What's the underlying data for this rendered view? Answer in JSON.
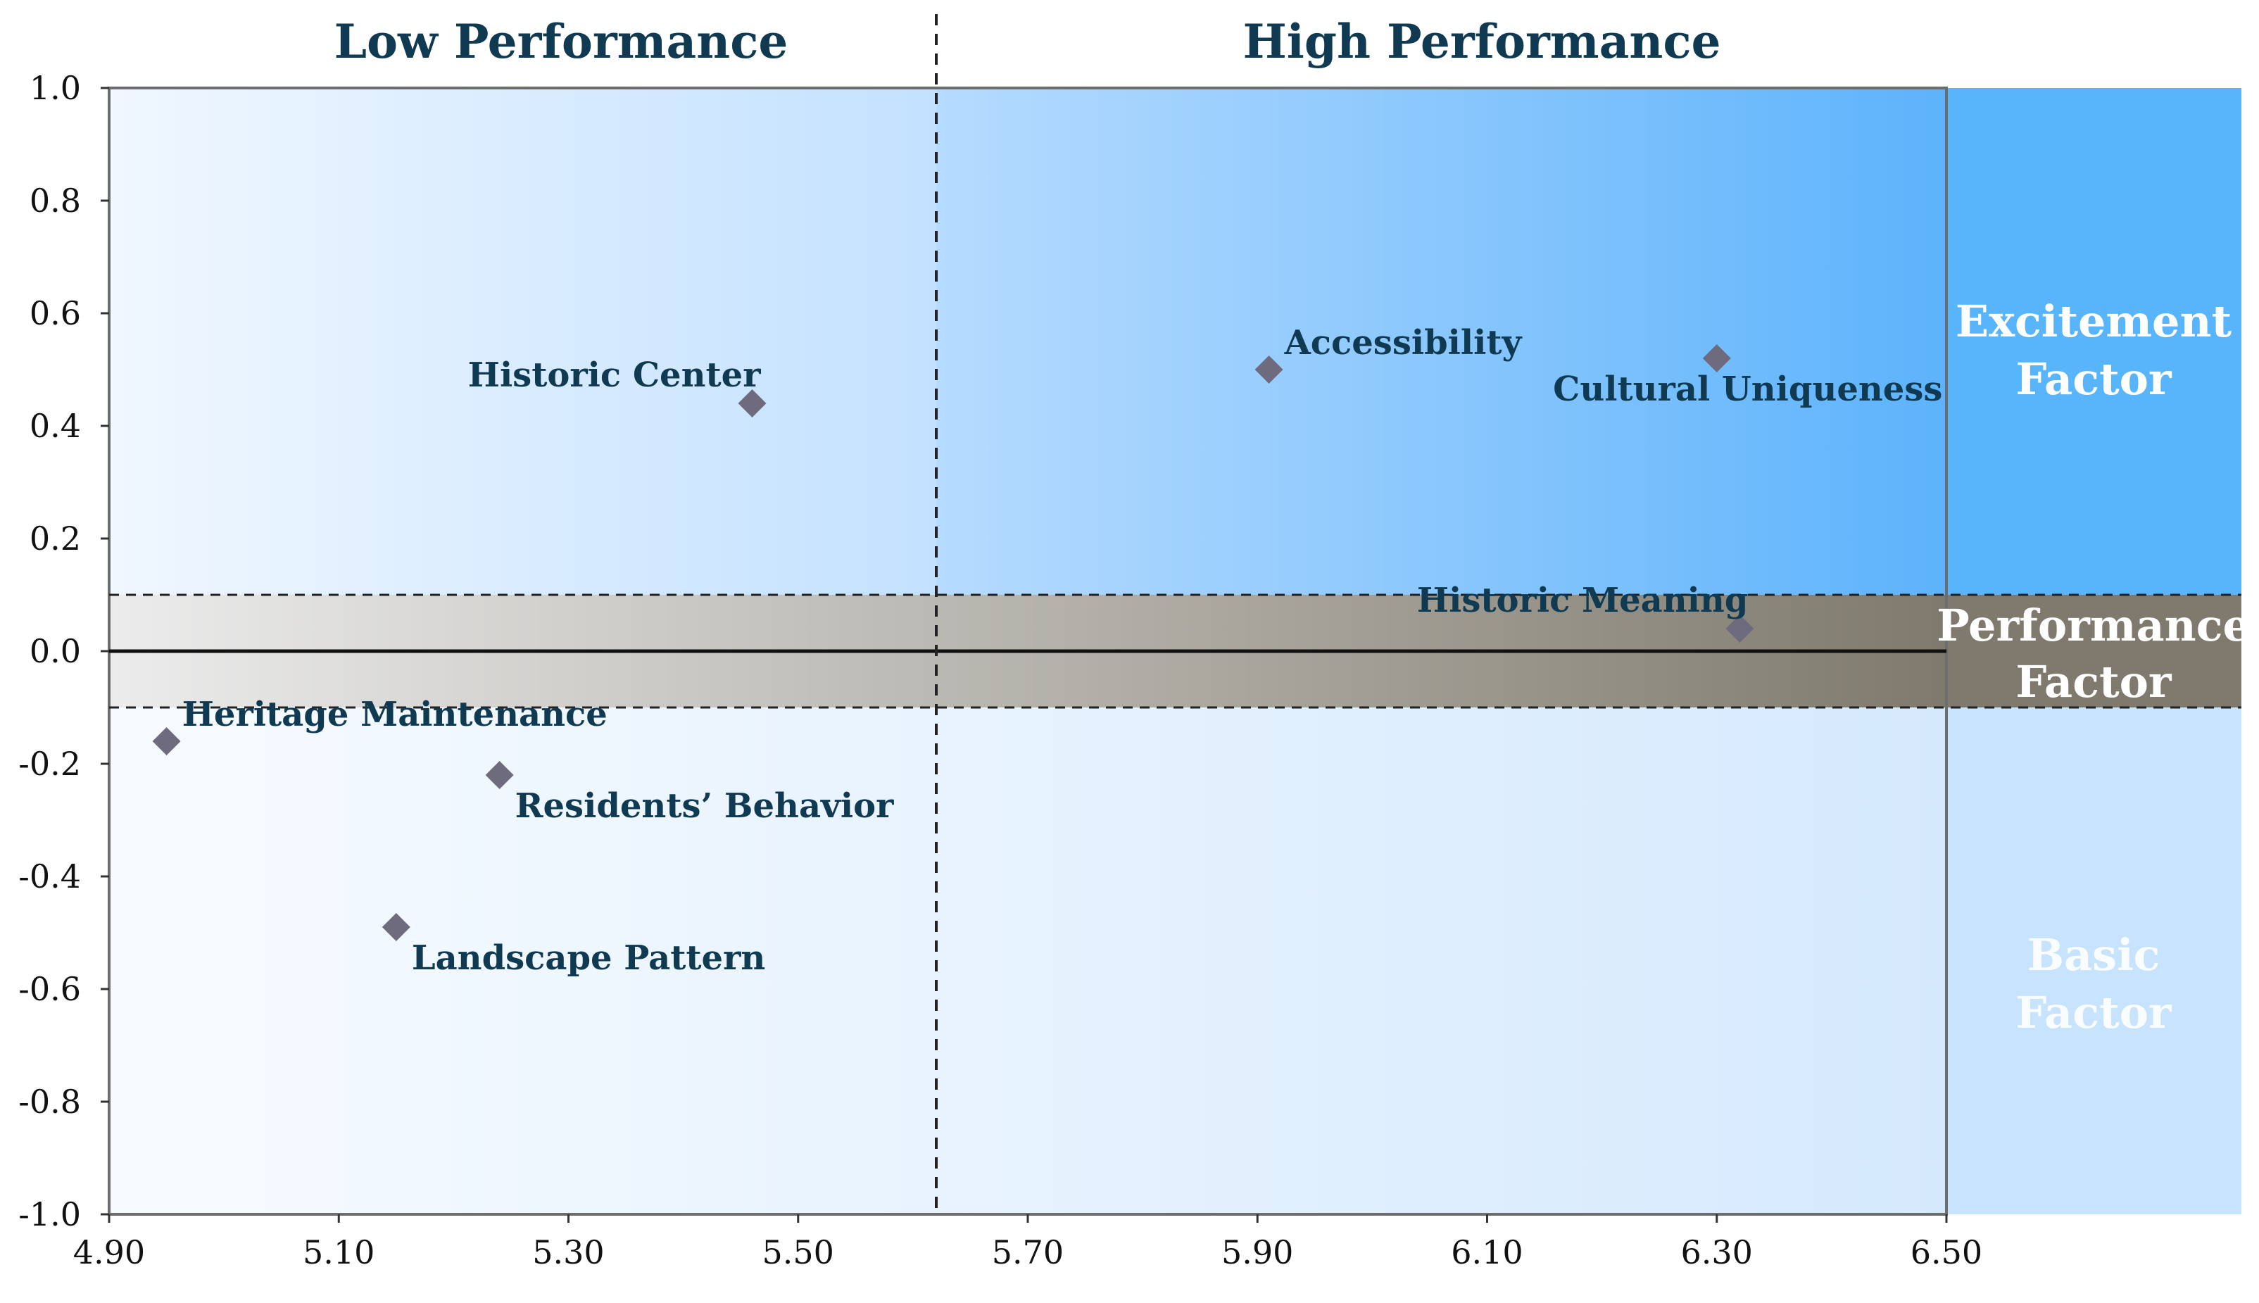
{
  "chart_data": {
    "type": "scatter",
    "title": "",
    "xlabel": "",
    "ylabel": "",
    "xlim": [
      4.9,
      6.5
    ],
    "ylim": [
      -1.0,
      1.0
    ],
    "x_ticks": [
      "4.90",
      "5.10",
      "5.30",
      "5.50",
      "5.70",
      "5.90",
      "6.10",
      "6.30",
      "6.50"
    ],
    "y_ticks": [
      "1.0",
      "0.8",
      "0.6",
      "0.4",
      "0.2",
      "0.0",
      "-0.2",
      "-0.4",
      "-0.6",
      "-0.8",
      "-1.0"
    ],
    "performance_threshold": 5.62,
    "zone_band": [
      -0.1,
      0.1
    ],
    "headers": {
      "low": "Low Performance",
      "high": "High Performance"
    },
    "zones": {
      "excitement": [
        "Excitement",
        "Factor"
      ],
      "performance": [
        "Performance",
        "Factor"
      ],
      "basic": [
        "Basic",
        "Factor"
      ]
    },
    "points": [
      {
        "label": "Historic Center",
        "x": 5.46,
        "y": 0.44,
        "label_pos": "above-left"
      },
      {
        "label": "Accessibility",
        "x": 5.91,
        "y": 0.5,
        "label_pos": "above-right"
      },
      {
        "label": "Cultural Uniqueness",
        "x": 6.3,
        "y": 0.52,
        "label_pos": "below-center"
      },
      {
        "label": "Historic Meaning",
        "x": 6.32,
        "y": 0.04,
        "label_pos": "above-left"
      },
      {
        "label": "Heritage Maintenance",
        "x": 4.95,
        "y": -0.16,
        "label_pos": "above-right"
      },
      {
        "label": "Residents’ Behavior",
        "x": 5.24,
        "y": -0.22,
        "label_pos": "below-right"
      },
      {
        "label": "Landscape Pattern",
        "x": 5.15,
        "y": -0.49,
        "label_pos": "below-right"
      }
    ],
    "colors": {
      "marker": "#6e6b7e",
      "label": "#0f3a52",
      "upper_left": "#f0f7ff",
      "upper_mid": "#c3e1ff",
      "upper_right_end": "#5db3fb",
      "band_left": "#ececec",
      "band_right": "#7f7a6d",
      "lower": "#eaf4ff",
      "excitement_zone": "#58b4fb",
      "performance_zone": "#7f7a6d",
      "basic_zone": "#c8e3fd"
    }
  }
}
